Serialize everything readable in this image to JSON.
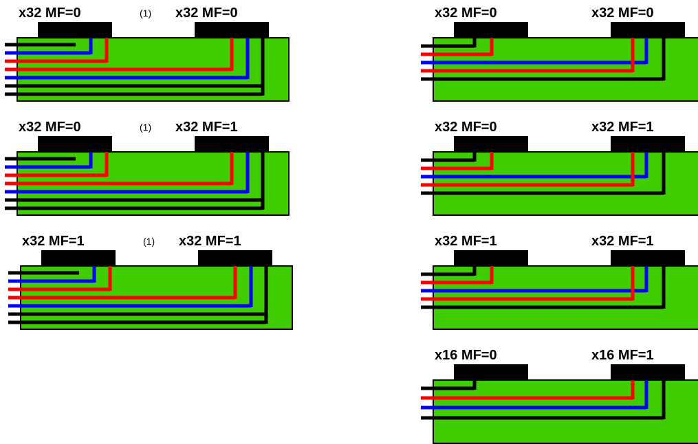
{
  "colors": {
    "board": "#3fcc00",
    "chip": "#000000",
    "red": "#ff0000",
    "blue": "#0000ff",
    "black": "#000000"
  },
  "note_text": "(1)",
  "panels": [
    {
      "left_label": "x32 MF=0",
      "right_label": "x32 MF=0",
      "note": "(1)",
      "variant": "a"
    },
    {
      "left_label": "x32 MF=0",
      "right_label": "x32 MF=1",
      "note": "(1)",
      "variant": "a"
    },
    {
      "left_label": "x32 MF=1",
      "right_label": "x32 MF=1",
      "note": "(1)",
      "variant": "a"
    },
    {
      "left_label": "x32 MF=0",
      "right_label": "x32 MF=0",
      "note": "",
      "variant": "b"
    },
    {
      "left_label": "x32 MF=0",
      "right_label": "x32 MF=1",
      "note": "",
      "variant": "b"
    },
    {
      "left_label": "x32 MF=1",
      "right_label": "x32 MF=1",
      "note": "",
      "variant": "b"
    },
    {
      "left_label": "x16 MF=0",
      "right_label": "x16 MF=1",
      "note": "",
      "variant": "c"
    }
  ]
}
